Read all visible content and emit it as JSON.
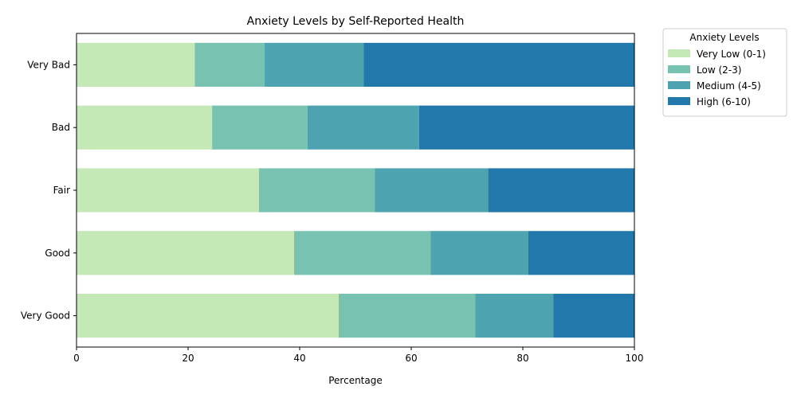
{
  "chart_data": {
    "type": "bar",
    "orientation": "horizontal",
    "stacked": true,
    "title": "Anxiety Levels by Self-Reported Health",
    "xlabel": "Percentage",
    "ylabel": "",
    "xlim": [
      0,
      100
    ],
    "xticks": [
      0,
      20,
      40,
      60,
      80,
      100
    ],
    "categories": [
      "Very Bad",
      "Bad",
      "Fair",
      "Good",
      "Very Good"
    ],
    "legend_title": "Anxiety Levels",
    "legend_position": "outside-top-right",
    "grid": false,
    "series": [
      {
        "name": "Very Low (0-1)",
        "color": "#c5e8b7",
        "values": [
          21.2,
          24.3,
          32.7,
          39.0,
          47.0
        ]
      },
      {
        "name": "Low (2-3)",
        "color": "#78c2b2",
        "values": [
          12.5,
          17.1,
          20.8,
          24.5,
          24.5
        ]
      },
      {
        "name": "Medium (4-5)",
        "color": "#4da3b0",
        "values": [
          17.8,
          20.0,
          20.3,
          17.5,
          14.0
        ]
      },
      {
        "name": "High (6-10)",
        "color": "#2378ab",
        "values": [
          48.5,
          38.6,
          26.2,
          19.0,
          14.5
        ]
      }
    ]
  }
}
